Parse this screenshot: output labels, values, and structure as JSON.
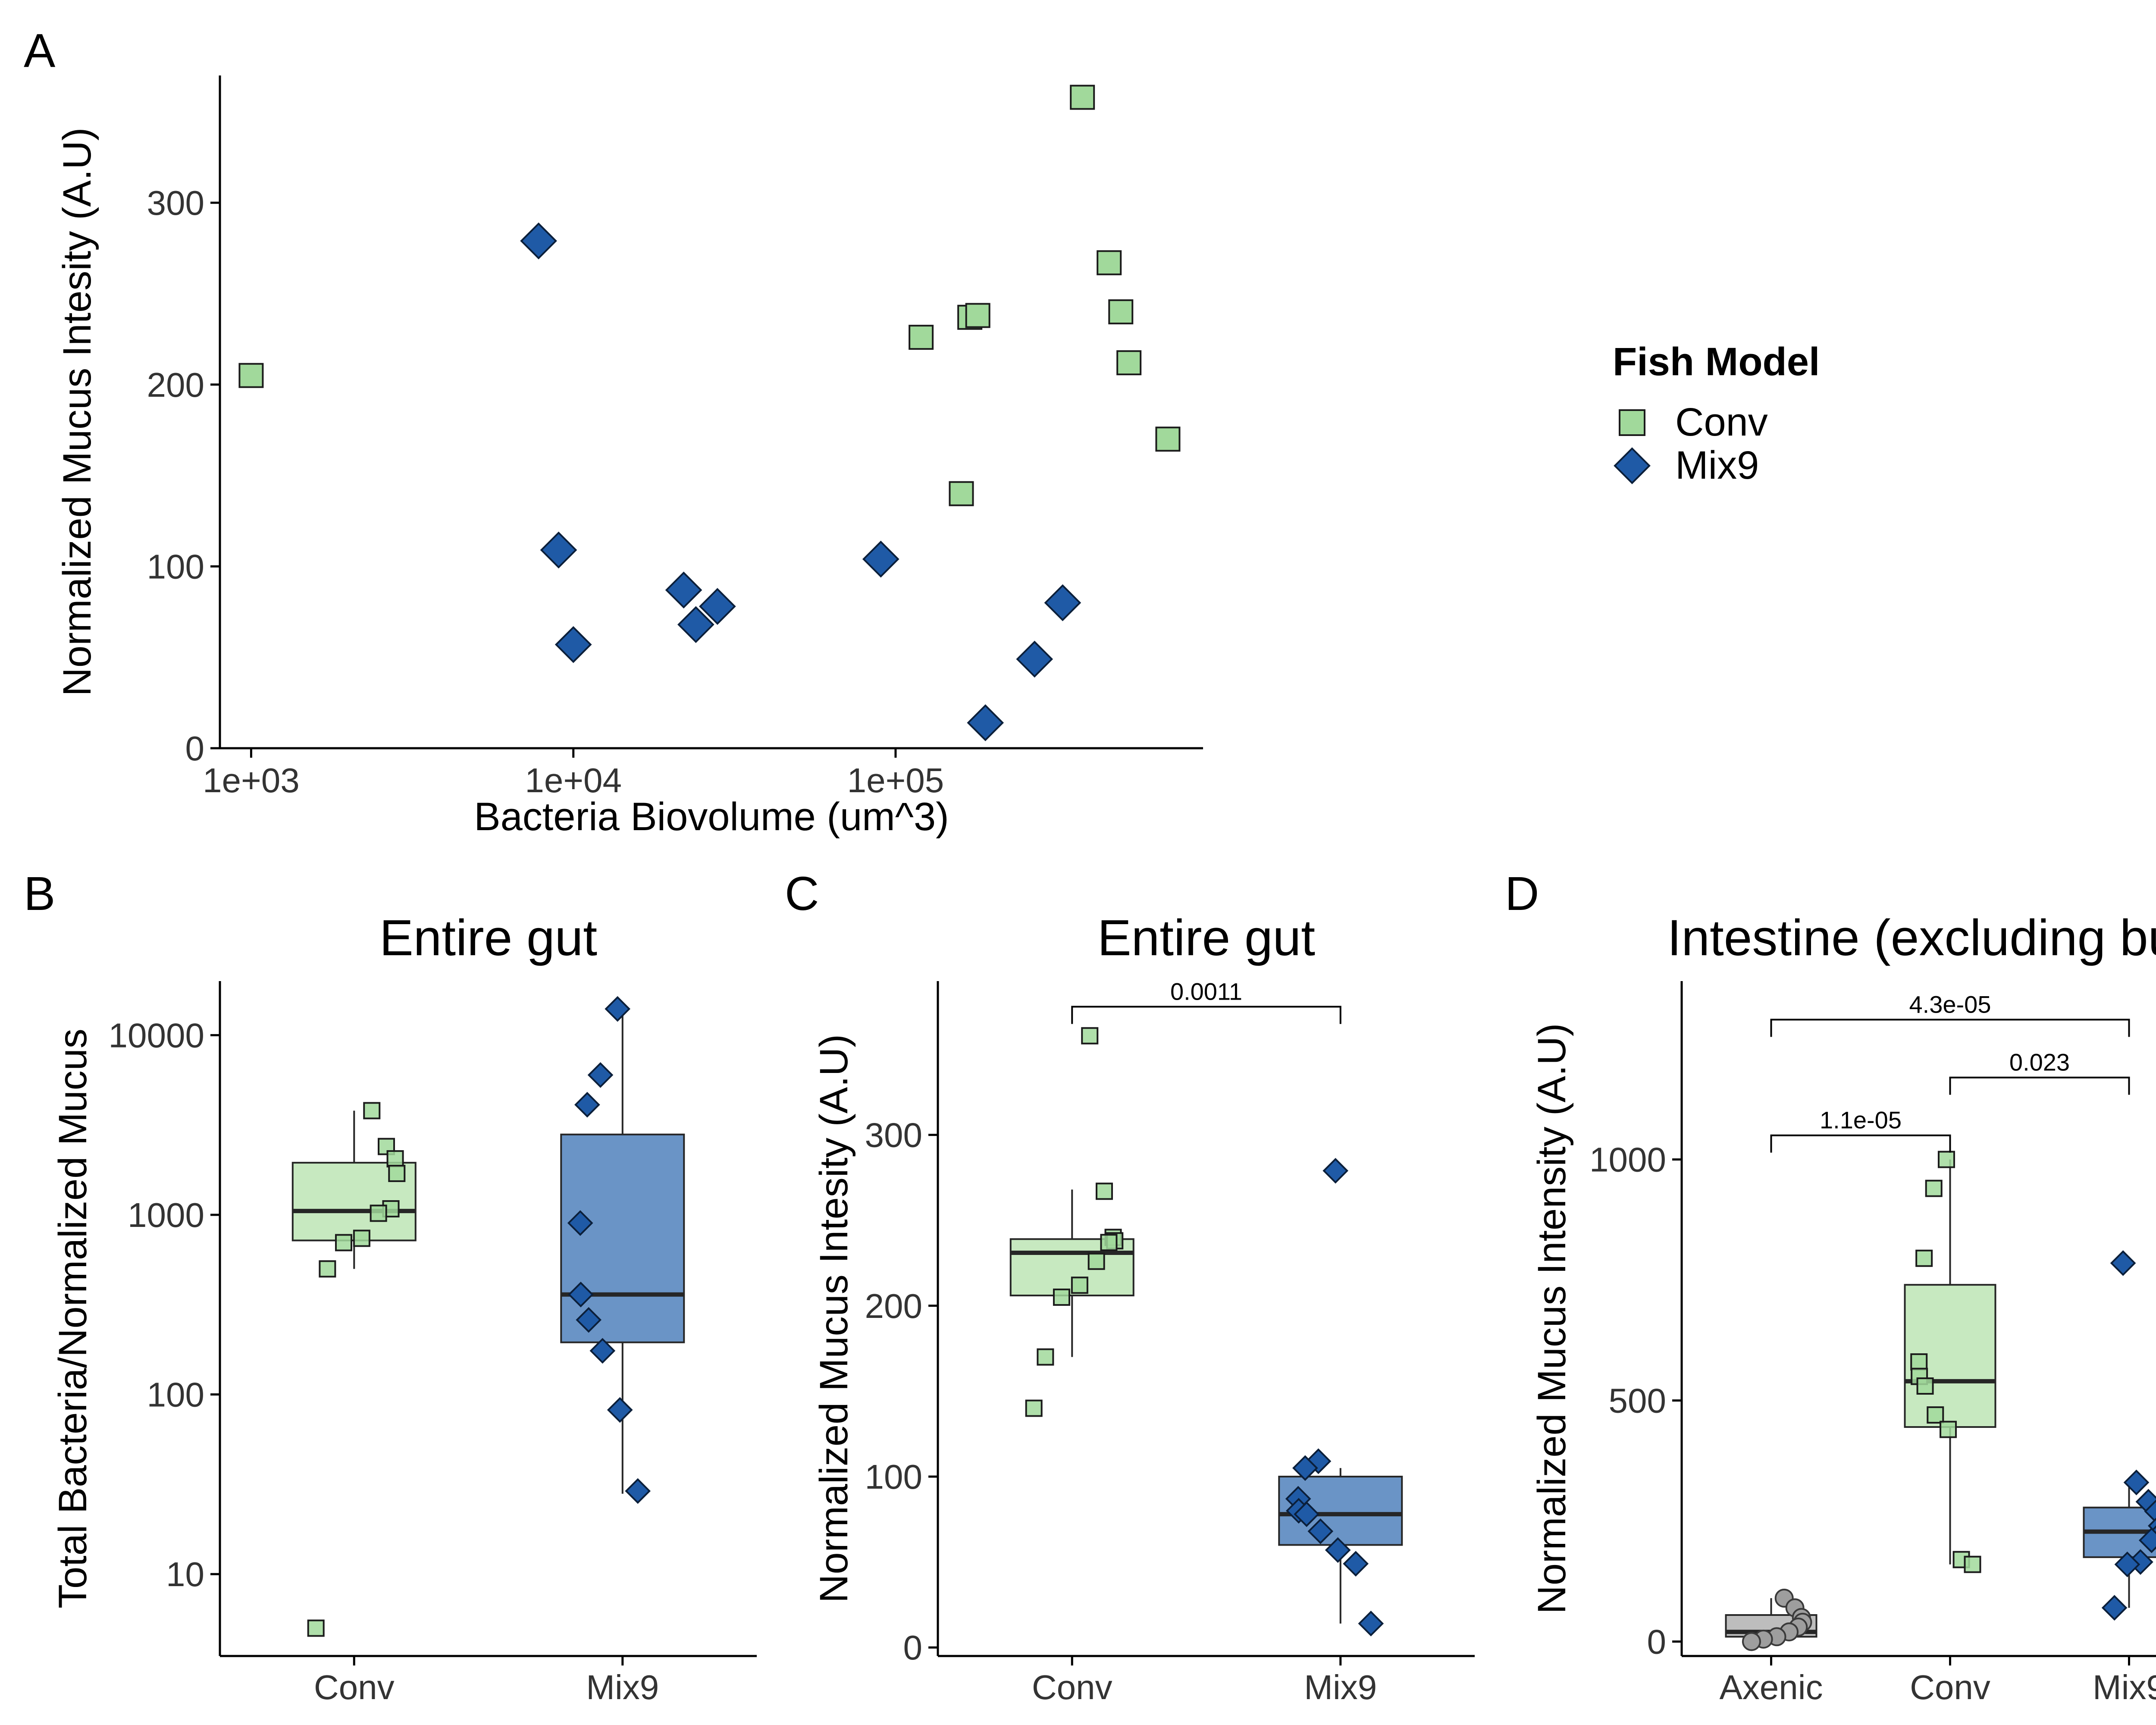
{
  "figure": {
    "panel_letters": [
      "A",
      "B",
      "C",
      "D"
    ]
  },
  "legend": {
    "title": "Fish Model",
    "items": [
      {
        "label": "Conv",
        "shape": "square",
        "fill": "#a1d99b",
        "stroke": "#1b1b1b"
      },
      {
        "label": "Mix9",
        "shape": "diamond",
        "fill": "#1f5aa6",
        "stroke": "#0b1f3a"
      }
    ]
  },
  "colors": {
    "axis": "#000000",
    "tick_text": "#333333",
    "conv_point": "#a1d99b",
    "mix9_point": "#1f5aa6",
    "axenic_point": "#9e9e9e",
    "conv_box": "#c7e9c0",
    "mix9_box": "#6a94c6",
    "axenic_box": "#bdbdbd",
    "median": "#262626"
  },
  "chart_data": [
    {
      "panel": "A",
      "type": "scatter",
      "title": "",
      "xlabel": "Bacteria Biovolume (um^3)",
      "ylabel": "Normalized Mucus Intesity (A.U)",
      "x_scale": "log10",
      "xlim": [
        800,
        900000
      ],
      "ylim": [
        0,
        370
      ],
      "x_ticks": [
        1000,
        10000,
        100000
      ],
      "x_tick_labels": [
        "1e+03",
        "1e+04",
        "1e+05"
      ],
      "y_ticks": [
        0,
        100,
        200,
        300
      ],
      "y_tick_labels": [
        "0",
        "100",
        "200",
        "300"
      ],
      "grid": false,
      "legend_position": "right",
      "series": [
        {
          "name": "Conv",
          "points": [
            [
              1000,
              205
            ],
            [
              120000,
              226
            ],
            [
              170000,
              237
            ],
            [
              180000,
              238
            ],
            [
              160000,
              140
            ],
            [
              380000,
              358
            ],
            [
              460000,
              267
            ],
            [
              500000,
              240
            ],
            [
              530000,
              212
            ],
            [
              700000,
              170
            ]
          ]
        },
        {
          "name": "Mix9",
          "points": [
            [
              7800,
              279
            ],
            [
              9000,
              109
            ],
            [
              10000,
              57
            ],
            [
              22000,
              87
            ],
            [
              24000,
              68
            ],
            [
              28000,
              78
            ],
            [
              90000,
              104
            ],
            [
              190000,
              14
            ],
            [
              270000,
              49
            ],
            [
              330000,
              80
            ]
          ]
        }
      ]
    },
    {
      "panel": "B",
      "type": "box",
      "title": "Entire gut",
      "xlabel": "",
      "ylabel": "Total Bacteria/Normalized Mucus",
      "y_scale": "log10",
      "ylim": [
        3.5,
        20000
      ],
      "y_ticks": [
        10,
        100,
        1000,
        10000
      ],
      "y_tick_labels": [
        "10",
        "100",
        "1000",
        "10000"
      ],
      "categories": [
        "Conv",
        "Mix9"
      ],
      "boxes": [
        {
          "category": "Conv",
          "q1": 720,
          "median": 1050,
          "q3": 1950,
          "whisker_low": 500,
          "whisker_high": 3800
        },
        {
          "category": "Mix9",
          "q1": 195,
          "median": 360,
          "q3": 2800,
          "whisker_low": 28,
          "whisker_high": 14000
        }
      ],
      "points": [
        {
          "category": "Conv",
          "values": [
            3800,
            2400,
            2050,
            1700,
            1080,
            1020,
            740,
            700,
            500,
            5
          ]
        },
        {
          "category": "Mix9",
          "values": [
            14000,
            6000,
            4100,
            900,
            360,
            260,
            175,
            82,
            29
          ]
        }
      ],
      "comparisons": []
    },
    {
      "panel": "C",
      "type": "box",
      "title": "Entire gut",
      "xlabel": "",
      "ylabel": "Normalized Mucus Intesity (A.U)",
      "y_scale": "linear",
      "ylim": [
        -5,
        390
      ],
      "y_ticks": [
        0,
        100,
        200,
        300
      ],
      "y_tick_labels": [
        "0",
        "100",
        "200",
        "300"
      ],
      "categories": [
        "Conv",
        "Mix9"
      ],
      "boxes": [
        {
          "category": "Conv",
          "q1": 206,
          "median": 231,
          "q3": 239,
          "whisker_low": 170,
          "whisker_high": 268
        },
        {
          "category": "Mix9",
          "q1": 60,
          "median": 78,
          "q3": 100,
          "whisker_low": 14,
          "whisker_high": 105
        }
      ],
      "points": [
        {
          "category": "Conv",
          "values": [
            358,
            267,
            240,
            238,
            237,
            226,
            212,
            205,
            170,
            140
          ]
        },
        {
          "category": "Mix9",
          "values": [
            279,
            109,
            105,
            87,
            80,
            78,
            68,
            57,
            49,
            14
          ]
        }
      ],
      "comparisons": [
        {
          "from": "Conv",
          "to": "Mix9",
          "y": 375,
          "label": "0.0011"
        }
      ]
    },
    {
      "panel": "D",
      "type": "box",
      "title": "Intestine (excluding bulb)",
      "xlabel": "",
      "ylabel": "Normalized Mucus Intensity (A.U)",
      "y_scale": "linear",
      "ylim": [
        -30,
        1370
      ],
      "y_ticks": [
        0,
        500,
        1000
      ],
      "y_tick_labels": [
        "0",
        "500",
        "1000"
      ],
      "categories": [
        "Axenic",
        "Conv",
        "Mix9"
      ],
      "boxes": [
        {
          "category": "Axenic",
          "q1": 10,
          "median": 20,
          "q3": 55,
          "whisker_low": 0,
          "whisker_high": 90
        },
        {
          "category": "Conv",
          "q1": 445,
          "median": 540,
          "q3": 740,
          "whisker_low": 160,
          "whisker_high": 1000
        },
        {
          "category": "Mix9",
          "q1": 175,
          "median": 228,
          "q3": 278,
          "whisker_low": 70,
          "whisker_high": 330
        }
      ],
      "points": [
        {
          "category": "Axenic",
          "values": [
            90,
            70,
            50,
            40,
            30,
            20,
            10,
            5,
            0
          ]
        },
        {
          "category": "Conv",
          "values": [
            1000,
            940,
            795,
            580,
            550,
            530,
            470,
            440,
            170,
            160
          ]
        },
        {
          "category": "Mix9",
          "values": [
            785,
            330,
            290,
            270,
            240,
            220,
            210,
            165,
            160,
            70
          ]
        }
      ],
      "comparisons": [
        {
          "from": "Axenic",
          "to": "Conv",
          "y": 1050,
          "label": "1.1e-05"
        },
        {
          "from": "Conv",
          "to": "Mix9",
          "y": 1170,
          "label": "0.023"
        },
        {
          "from": "Axenic",
          "to": "Mix9",
          "y": 1290,
          "label": "4.3e-05"
        }
      ]
    }
  ]
}
